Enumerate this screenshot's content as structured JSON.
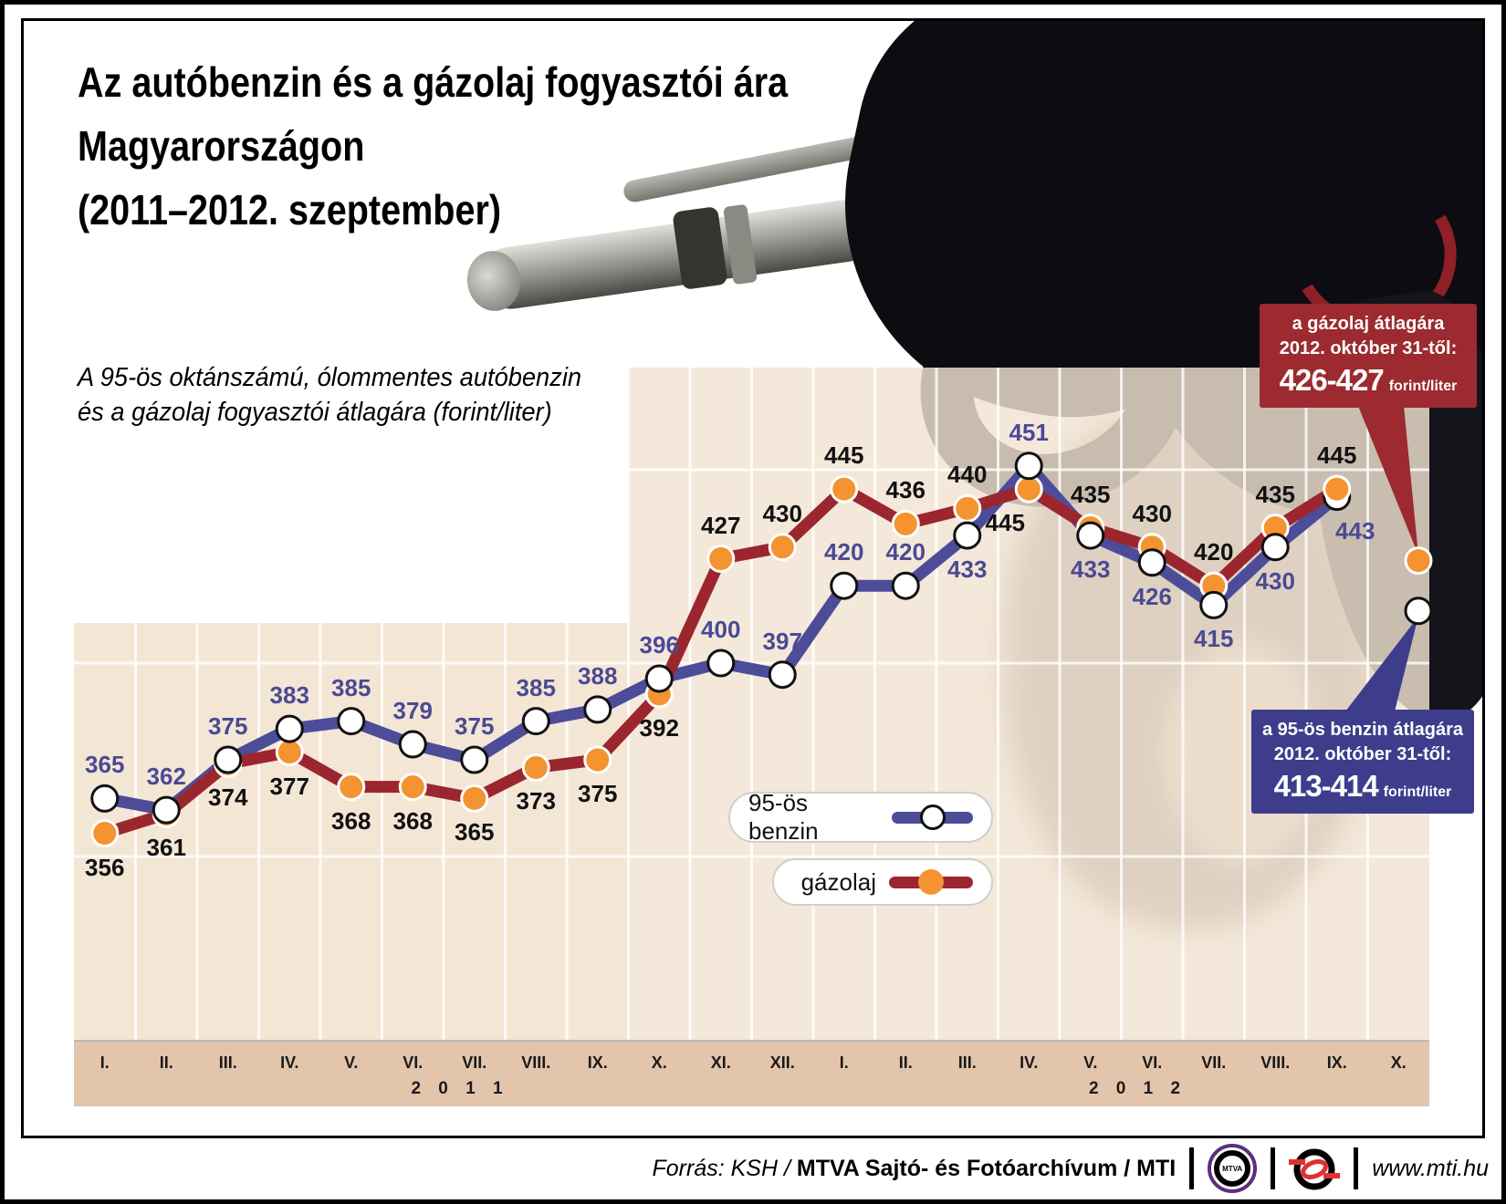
{
  "title": {
    "line1": "Az autóbenzin és a gázolaj fogyasztói ára",
    "line2": "Magyarországon",
    "line3": "(2011–2012. szeptember)"
  },
  "subtitle": {
    "line1": "A 95-ös oktánszámú, ólommentes autóbenzin",
    "line2": "és a gázolaj fogyasztói átlagára (forint/liter)"
  },
  "chart_data": {
    "type": "line",
    "unit": "forint/liter",
    "x_months": [
      "I.",
      "II.",
      "III.",
      "IV.",
      "V.",
      "VI.",
      "VII.",
      "VIII.",
      "IX.",
      "X.",
      "XI.",
      "XII.",
      "I.",
      "II.",
      "III.",
      "IV.",
      "V.",
      "VI.",
      "VII.",
      "VIII.",
      "IX.",
      "X."
    ],
    "x_years": [
      {
        "label": "2011",
        "from": 0,
        "to": 11
      },
      {
        "label": "2012",
        "from": 12,
        "to": 21
      }
    ],
    "y_gridlines": [
      350,
      400,
      450
    ],
    "grid": true,
    "series": [
      {
        "name": "95-ös benzin",
        "line_color": "#4c4c99",
        "marker_fill": "#ffffff",
        "marker_stroke": "#111111",
        "label_color": "#4a4a94",
        "values": [
          365,
          362,
          375,
          383,
          385,
          379,
          375,
          385,
          388,
          396,
          400,
          397,
          420,
          420,
          433,
          451,
          433,
          426,
          415,
          430,
          443
        ],
        "label_positions": [
          "above",
          "above",
          "above",
          "above",
          "above",
          "above",
          "above",
          "above",
          "above",
          "above",
          "above",
          "above",
          "above",
          "above",
          "below",
          "above",
          "below",
          "below",
          "below",
          "below",
          "below"
        ]
      },
      {
        "name": "gázolaj",
        "line_color": "#9c262e",
        "marker_fill": "#f4932f",
        "marker_stroke": "#ffffff",
        "label_color": "#111111",
        "values": [
          356,
          361,
          374,
          377,
          368,
          368,
          365,
          373,
          375,
          392,
          427,
          430,
          445,
          436,
          440,
          445,
          435,
          430,
          420,
          435,
          445
        ],
        "label_positions": [
          "below",
          "below",
          "below",
          "below",
          "below",
          "below",
          "below",
          "below",
          "below",
          "below",
          "above",
          "above",
          "above",
          "above",
          "above",
          "below",
          "above",
          "above",
          "above",
          "above",
          "above"
        ]
      }
    ],
    "forecast_points": [
      {
        "series": "gázolaj",
        "month": "X. 2012",
        "value": 426.5,
        "display": "426-427"
      },
      {
        "series": "95-ös benzin",
        "month": "X. 2012",
        "value": 413.5,
        "display": "413-414"
      }
    ]
  },
  "legend": {
    "benzin": {
      "label": "95-ös benzin"
    },
    "gazolaj": {
      "label": "gázolaj"
    }
  },
  "callouts": {
    "gazolaj": {
      "line1": "a gázolaj átlagára",
      "line2": "2012. október 31-től:",
      "value": "426-427",
      "unit": "forint/liter",
      "bg": "#9c2a30"
    },
    "benzin": {
      "line1": "a 95-ös benzin átlagára",
      "line2": "2012. október 31-től:",
      "value": "413-414",
      "unit": "forint/liter",
      "bg": "#3d3d8c"
    }
  },
  "footer": {
    "source_prefix": "Forrás: KSH / ",
    "source_bold": "MTVA Sajtó- és Fotóarchívum / MTI",
    "mtva_logo_text": "MTVA",
    "site": "www.mti.hu"
  },
  "colors": {
    "panel_beige": "#f4e6d5",
    "axis_tan": "#e3c5ab",
    "benzin_blue": "#4c4c99",
    "gazolaj_red": "#9c262e",
    "marker_orange": "#f4932f",
    "callout_red_bg": "#9c2a30",
    "callout_blue_bg": "#3d3d8c"
  }
}
